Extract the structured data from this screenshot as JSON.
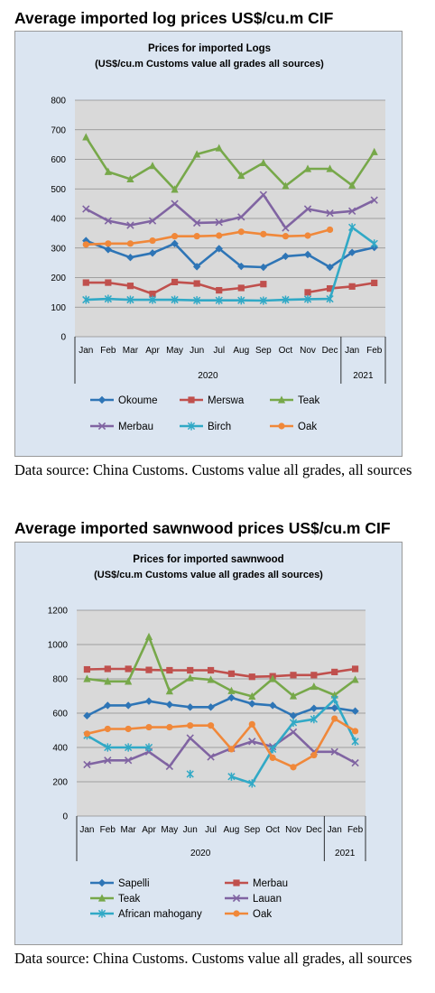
{
  "headings": {
    "logs": "Average imported log prices US$/cu.m CIF",
    "sawn": "Average imported sawnwood prices US$/cu.m CIF"
  },
  "sources": {
    "logs": "Data source: China Customs. Customs value all grades, all sources",
    "sawn": "Data source: China Customs. Customs value all grades, all sources"
  },
  "chart_data": [
    {
      "type": "line",
      "title": "Prices for imported Logs",
      "subtitle": "(US$/cu.m Customs value all grades all sources)",
      "categories": [
        "Jan",
        "Feb",
        "Mar",
        "Apr",
        "May",
        "Jun",
        "Jul",
        "Aug",
        "Sep",
        "Oct",
        "Nov",
        "Dec",
        "Jan",
        "Feb"
      ],
      "year_groups": [
        {
          "label": "2020",
          "count": 12
        },
        {
          "label": "2021",
          "count": 2
        }
      ],
      "ylim": [
        0,
        800
      ],
      "yticks": [
        0,
        100,
        200,
        300,
        400,
        500,
        600,
        700,
        800
      ],
      "grid": true,
      "legend_position": "bottom",
      "series": [
        {
          "name": "Okoume",
          "color": "#2e75b6",
          "marker": "diamond",
          "values": [
            325,
            295,
            268,
            283,
            315,
            237,
            298,
            238,
            235,
            272,
            278,
            235,
            285,
            302
          ]
        },
        {
          "name": "Merswa",
          "color": "#c0504d",
          "marker": "square",
          "values": [
            183,
            183,
            172,
            145,
            185,
            180,
            157,
            165,
            178,
            null,
            150,
            163,
            170,
            182
          ]
        },
        {
          "name": "Teak",
          "color": "#77a84a",
          "marker": "triangle",
          "values": [
            675,
            558,
            533,
            578,
            498,
            617,
            638,
            545,
            588,
            510,
            568,
            568,
            512,
            625
          ]
        },
        {
          "name": "Merbau",
          "color": "#8064a2",
          "marker": "x",
          "values": [
            432,
            392,
            377,
            392,
            450,
            385,
            387,
            405,
            480,
            368,
            432,
            418,
            425,
            462
          ]
        },
        {
          "name": "Birch",
          "color": "#31a9c6",
          "marker": "star",
          "values": [
            125,
            128,
            125,
            125,
            125,
            123,
            123,
            123,
            122,
            125,
            127,
            128,
            370,
            315
          ]
        },
        {
          "name": "Oak",
          "color": "#f0883a",
          "marker": "circle",
          "values": [
            312,
            315,
            315,
            325,
            340,
            340,
            342,
            355,
            347,
            340,
            342,
            362,
            null,
            null
          ]
        }
      ]
    },
    {
      "type": "line",
      "title": "Prices for imported sawnwood",
      "subtitle": "(US$/cu.m Customs value all grades all sources)",
      "categories": [
        "Jan",
        "Feb",
        "Mar",
        "Apr",
        "May",
        "Jun",
        "Jul",
        "Aug",
        "Sep",
        "Oct",
        "Nov",
        "Dec",
        "Jan",
        "Feb"
      ],
      "year_groups": [
        {
          "label": "2020",
          "count": 12
        },
        {
          "label": "2021",
          "count": 2
        }
      ],
      "ylim": [
        0,
        1200
      ],
      "yticks": [
        0,
        200,
        400,
        600,
        800,
        1000,
        1200
      ],
      "grid": true,
      "legend_position": "bottom",
      "series": [
        {
          "name": "Sapelli",
          "color": "#2e75b6",
          "marker": "diamond",
          "values": [
            585,
            645,
            645,
            670,
            650,
            635,
            635,
            690,
            655,
            645,
            585,
            628,
            630,
            612
          ]
        },
        {
          "name": "Merbau",
          "color": "#c0504d",
          "marker": "square",
          "values": [
            855,
            858,
            858,
            852,
            850,
            850,
            850,
            830,
            812,
            815,
            822,
            822,
            840,
            858
          ]
        },
        {
          "name": "Teak",
          "color": "#77a84a",
          "marker": "triangle",
          "values": [
            800,
            785,
            785,
            1045,
            728,
            805,
            795,
            730,
            698,
            800,
            700,
            755,
            705,
            795
          ]
        },
        {
          "name": "Lauan",
          "color": "#8064a2",
          "marker": "x",
          "values": [
            300,
            325,
            325,
            375,
            290,
            455,
            345,
            395,
            435,
            405,
            490,
            375,
            375,
            310
          ]
        },
        {
          "name": "African mahogany",
          "color": "#31a9c6",
          "marker": "star",
          "values": [
            470,
            400,
            400,
            400,
            null,
            245,
            null,
            230,
            190,
            390,
            545,
            565,
            680,
            435
          ]
        },
        {
          "name": "Oak",
          "color": "#f0883a",
          "marker": "circle",
          "values": [
            480,
            508,
            508,
            518,
            518,
            528,
            528,
            390,
            535,
            340,
            285,
            355,
            568,
            495
          ]
        }
      ]
    }
  ]
}
